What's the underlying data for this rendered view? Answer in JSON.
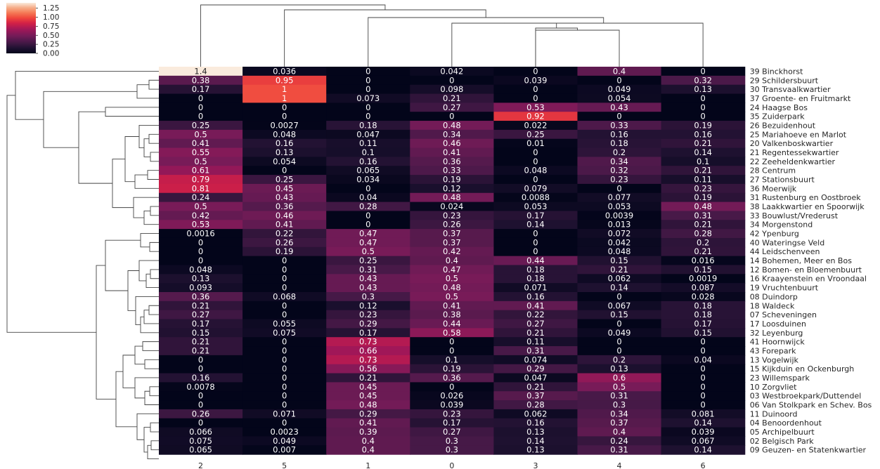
{
  "chart_data": {
    "type": "heatmap",
    "title": "",
    "xlabel": "",
    "ylabel": "",
    "columns": [
      "2",
      "5",
      "1",
      "0",
      "3",
      "4",
      "6"
    ],
    "rows": [
      "39 Binckhorst",
      "29 Schildersbuurt",
      "30 Transvaalkwartier",
      "37 Groente- en Fruitmarkt",
      "24 Haagse Bos",
      "35 Zuiderpark",
      "26 Bezuidenhout",
      "25 Mariahoeve en Marlot",
      "20 Valkenboskwartier",
      "21 Regentessekwartier",
      "22 Zeeheldenkwartier",
      "28 Centrum",
      "27 Stationsbuurt",
      "36 Moerwijk",
      "31 Rustenburg en Oostbroek",
      "38 Laakkwartier en Spoorwijk",
      "33 Bouwlust/Vrederust",
      "34 Morgenstond",
      "42 Ypenburg",
      "40 Wateringse Veld",
      "44 Leidschenveen",
      "14 Bohemen, Meer en Bos",
      "12 Bomen- en Bloemenbuurt",
      "16 Kraayenstein en Vroondaal",
      "19 Vruchtenbuurt",
      "08 Duindorp",
      "18 Waldeck",
      "07 Scheveningen",
      "17 Loosduinen",
      "32 Leyenburg",
      "41 Hoornwijck",
      "43 Forepark",
      "13 Vogelwijk",
      "15 Kijkduin en Ockenburgh",
      "23 Willemspark",
      "10 Zorgvliet",
      "03 Westbroekpark/Duttendel",
      "06 Van Stolkpark en Schev. Bos",
      "11 Duinoord",
      "04 Benoordenhout",
      "05 Archipelbuurt",
      "02 Belgisch Park",
      "09 Geuzen- en Statenkwartier"
    ],
    "labels": [
      [
        "1.4",
        "0.036",
        "0",
        "0.042",
        "0",
        "0.4",
        "0"
      ],
      [
        "0.38",
        "0.95",
        "0",
        "0",
        "0.039",
        "0",
        "0.32"
      ],
      [
        "0.17",
        "1",
        "0",
        "0.098",
        "0",
        "0.049",
        "0.13"
      ],
      [
        "0",
        "1",
        "0.073",
        "0.21",
        "0",
        "0.054",
        "0"
      ],
      [
        "0",
        "0",
        "0",
        "0.27",
        "0.53",
        "0.43",
        "0"
      ],
      [
        "0",
        "0",
        "0",
        "0",
        "0.92",
        "0",
        "0"
      ],
      [
        "0.25",
        "0.0027",
        "0.18",
        "0.48",
        "0.022",
        "0.33",
        "0.19"
      ],
      [
        "0.5",
        "0.048",
        "0.047",
        "0.34",
        "0.25",
        "0.16",
        "0.16"
      ],
      [
        "0.41",
        "0.16",
        "0.11",
        "0.46",
        "0.01",
        "0.18",
        "0.21"
      ],
      [
        "0.55",
        "0.13",
        "0.1",
        "0.41",
        "0",
        "0.2",
        "0.14"
      ],
      [
        "0.5",
        "0.054",
        "0.16",
        "0.36",
        "0",
        "0.34",
        "0.1"
      ],
      [
        "0.61",
        "0",
        "0.065",
        "0.33",
        "0.048",
        "0.32",
        "0.21"
      ],
      [
        "0.79",
        "0.25",
        "0.034",
        "0.19",
        "0",
        "0.23",
        "0.11"
      ],
      [
        "0.81",
        "0.45",
        "0",
        "0.12",
        "0.079",
        "0",
        "0.23"
      ],
      [
        "0.24",
        "0.43",
        "0.04",
        "0.48",
        "0.0088",
        "0.077",
        "0.19"
      ],
      [
        "0.5",
        "0.36",
        "0.28",
        "0.024",
        "0.053",
        "0.053",
        "0.48"
      ],
      [
        "0.42",
        "0.46",
        "0",
        "0.23",
        "0.17",
        "0.0039",
        "0.31"
      ],
      [
        "0.53",
        "0.41",
        "0",
        "0.26",
        "0.14",
        "0.013",
        "0.21"
      ],
      [
        "0.0016",
        "0.22",
        "0.47",
        "0.37",
        "0",
        "0.072",
        "0.28"
      ],
      [
        "0",
        "0.26",
        "0.47",
        "0.37",
        "0",
        "0.042",
        "0.2"
      ],
      [
        "0",
        "0.19",
        "0.5",
        "0.42",
        "0",
        "0.048",
        "0.21"
      ],
      [
        "0",
        "0",
        "0.25",
        "0.4",
        "0.44",
        "0.15",
        "0.016"
      ],
      [
        "0.048",
        "0",
        "0.31",
        "0.47",
        "0.18",
        "0.21",
        "0.15"
      ],
      [
        "0.13",
        "0",
        "0.43",
        "0.5",
        "0.18",
        "0.062",
        "0.0019"
      ],
      [
        "0.093",
        "0",
        "0.43",
        "0.48",
        "0.071",
        "0.14",
        "0.087"
      ],
      [
        "0.36",
        "0.068",
        "0.3",
        "0.5",
        "0.16",
        "0",
        "0.028"
      ],
      [
        "0.21",
        "0",
        "0.12",
        "0.41",
        "0.41",
        "0.067",
        "0.18"
      ],
      [
        "0.27",
        "0",
        "0.23",
        "0.38",
        "0.22",
        "0.15",
        "0.18"
      ],
      [
        "0.17",
        "0.055",
        "0.29",
        "0.44",
        "0.27",
        "0",
        "0.17"
      ],
      [
        "0.15",
        "0.075",
        "0.17",
        "0.58",
        "0.21",
        "0.049",
        "0.15"
      ],
      [
        "0.21",
        "0",
        "0.73",
        "0",
        "0.11",
        "0",
        "0"
      ],
      [
        "0.21",
        "0",
        "0.66",
        "0",
        "0.31",
        "0",
        "0"
      ],
      [
        "0",
        "0",
        "0.73",
        "0.1",
        "0.074",
        "0.2",
        "0.04"
      ],
      [
        "0",
        "0",
        "0.56",
        "0.19",
        "0.29",
        "0.13",
        "0"
      ],
      [
        "0.16",
        "0",
        "0.21",
        "0.36",
        "0.047",
        "0.6",
        "0"
      ],
      [
        "0.0078",
        "0",
        "0.45",
        "0",
        "0.21",
        "0.5",
        "0"
      ],
      [
        "0",
        "0",
        "0.45",
        "0.026",
        "0.37",
        "0.31",
        "0"
      ],
      [
        "0",
        "0",
        "0.48",
        "0.039",
        "0.28",
        "0.3",
        "0"
      ],
      [
        "0.26",
        "0.071",
        "0.29",
        "0.23",
        "0.062",
        "0.34",
        "0.081"
      ],
      [
        "0",
        "0",
        "0.41",
        "0.17",
        "0.16",
        "0.37",
        "0.14"
      ],
      [
        "0.066",
        "0.0023",
        "0.39",
        "0.27",
        "0.13",
        "0.4",
        "0.039"
      ],
      [
        "0.075",
        "0.049",
        "0.4",
        "0.3",
        "0.14",
        "0.24",
        "0.067"
      ],
      [
        "0.065",
        "0.007",
        "0.4",
        "0.3",
        "0.13",
        "0.31",
        "0.14"
      ]
    ],
    "colorbar": {
      "ticks": [
        "1.25",
        "1.00",
        "0.75",
        "0.50",
        "0.25",
        "0.00"
      ],
      "range": [
        0,
        1.4
      ],
      "colormap": "rocket"
    },
    "grid": false,
    "legend": "colorbar top-left",
    "dendrograms": [
      "columns (top)",
      "rows (left)"
    ]
  }
}
